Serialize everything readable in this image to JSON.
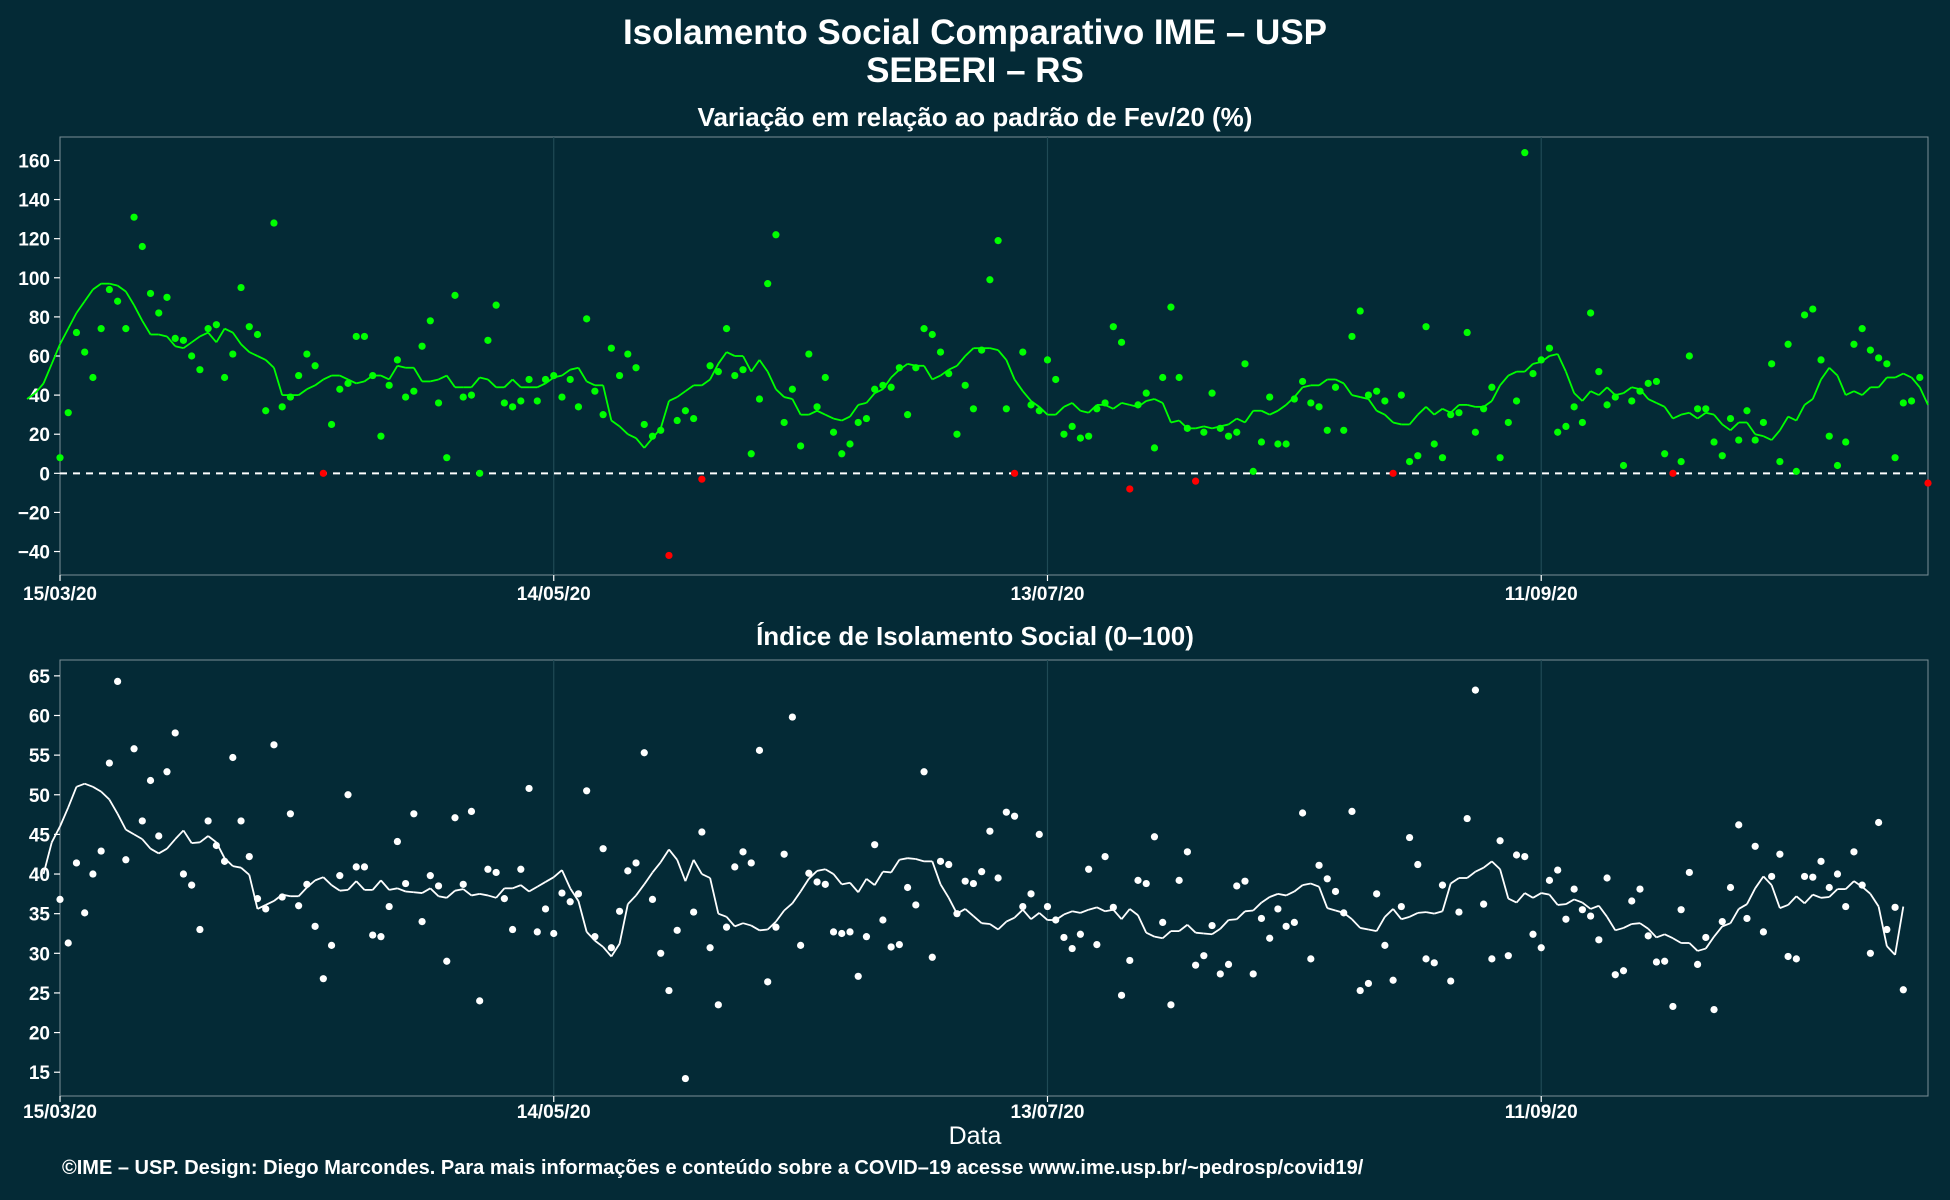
{
  "header": {
    "title": "Isolamento Social Comparativo IME – USP",
    "subtitle": "SEBERI – RS"
  },
  "footer": "©IME – USP. Design: Diego Marcondes. Para mais informações e conteúdo sobre a COVID–19 acesse www.ime.usp.br/~pedrosp/covid19/",
  "colors": {
    "background": "#042a36",
    "positive": "#00ff00",
    "negative": "#ff0000",
    "index": "#ffffff",
    "zero_line": "#ffffff",
    "grid": "#1f4a55"
  },
  "chart_data": [
    {
      "type": "scatter",
      "title": "Variação em relação ao padrão de Fev/20 (%)",
      "xlabel": "",
      "ylabel": "",
      "x_range": [
        "2020-03-15",
        "2020-10-28"
      ],
      "ylim": [
        -52,
        172
      ],
      "y_ticks": [
        -40,
        -20,
        0,
        20,
        40,
        60,
        80,
        100,
        120,
        140,
        160
      ],
      "x_ticks": [
        "15/03/20",
        "14/05/20",
        "13/07/20",
        "11/09/20"
      ],
      "reference_line": 0,
      "series": [
        {
          "points": [
            8,
            31,
            72,
            62,
            49,
            74,
            94,
            88,
            74,
            131,
            116,
            92,
            82,
            90,
            69,
            68,
            60,
            53,
            74,
            76,
            49,
            61,
            95,
            75,
            71,
            32,
            128,
            34,
            39,
            50,
            61,
            55,
            0,
            25,
            43,
            46,
            70,
            70,
            50,
            19,
            45,
            58,
            39,
            42,
            65,
            78,
            36,
            8,
            91,
            39,
            40,
            0,
            68,
            86,
            36,
            34,
            37,
            48,
            37,
            48,
            50,
            39,
            48,
            34,
            79,
            42,
            30,
            64,
            50,
            61,
            54,
            25,
            19,
            22,
            -42,
            27,
            32,
            28,
            -3,
            55,
            52,
            74,
            50,
            53,
            10,
            38,
            97,
            122,
            26,
            43,
            14,
            61,
            34,
            49,
            21,
            10,
            15,
            26,
            28,
            43,
            45,
            44,
            54,
            30,
            54,
            74,
            71,
            62,
            51,
            20,
            45,
            33,
            63,
            99,
            119,
            33,
            0,
            62,
            35,
            32,
            58,
            48,
            20,
            24,
            18,
            19,
            33,
            36,
            75,
            67,
            -8,
            35,
            41,
            13,
            49,
            85,
            49,
            23,
            -4,
            21,
            41,
            23,
            19,
            21,
            56,
            1,
            16,
            39,
            15,
            15,
            38,
            47,
            36,
            34,
            22,
            44,
            22,
            70,
            83,
            40,
            42,
            37,
            0,
            40,
            6,
            9,
            75,
            15,
            8,
            30,
            31,
            72,
            21,
            33,
            44,
            8,
            26,
            37,
            164,
            51,
            58,
            64,
            21,
            24,
            34,
            26,
            82,
            52,
            35,
            39,
            4,
            37,
            42,
            46,
            47,
            10,
            0,
            6,
            60,
            33,
            33,
            16,
            9,
            28,
            17,
            32,
            17,
            26,
            56,
            6,
            66,
            1,
            81,
            84,
            58,
            19,
            4,
            16,
            66,
            74,
            63,
            59,
            56,
            8,
            36,
            37,
            49,
            -5
          ]
        },
        {
          "name": "moving average",
          "values": [
            38,
            41,
            46,
            56,
            66,
            74,
            82,
            88,
            94,
            97,
            97,
            96,
            93,
            86,
            78,
            71,
            71,
            70,
            65,
            64,
            67,
            70,
            72,
            67,
            74,
            72,
            66,
            62,
            60,
            58,
            54,
            40,
            40,
            40,
            43,
            45,
            48,
            50,
            50,
            48,
            46,
            47,
            50,
            50,
            48,
            55,
            54,
            54,
            47,
            47,
            48,
            50,
            44,
            44,
            44,
            49,
            48,
            44,
            44,
            48,
            44,
            44,
            44,
            46,
            49,
            50,
            53,
            54,
            47,
            45,
            45,
            27,
            24,
            20,
            18,
            13,
            18,
            23,
            37,
            39,
            42,
            45,
            45,
            48,
            56,
            62,
            60,
            60,
            52,
            58,
            52,
            43,
            39,
            38,
            30,
            30,
            32,
            30,
            28,
            27,
            29,
            35,
            36,
            41,
            43,
            49,
            53,
            56,
            55,
            55,
            48,
            50,
            53,
            55,
            60,
            64,
            64,
            64,
            63,
            58,
            48,
            42,
            37,
            34,
            30,
            30,
            34,
            36,
            32,
            31,
            35,
            35,
            33,
            36,
            35,
            34,
            37,
            38,
            36,
            26,
            27,
            23,
            23,
            24,
            23,
            24,
            25,
            28,
            26,
            32,
            32,
            30,
            32,
            35,
            39,
            44,
            45,
            45,
            48,
            48,
            46,
            40,
            39,
            38,
            32,
            30,
            26,
            25,
            25,
            30,
            34,
            30,
            33,
            31,
            35,
            35,
            34,
            34,
            37,
            45,
            50,
            52,
            52,
            56,
            57,
            60,
            61,
            52,
            41,
            37,
            42,
            40,
            44,
            40,
            41,
            44,
            43,
            38,
            36,
            34,
            28,
            30,
            31,
            28,
            31,
            30,
            25,
            22,
            26,
            26,
            20,
            19,
            17,
            22,
            29,
            27,
            35,
            38,
            48,
            54,
            50,
            40,
            42,
            40,
            44,
            44,
            49,
            49,
            51,
            49,
            44,
            35
          ],
          "colors_by_sign": true
        }
      ]
    },
    {
      "type": "scatter",
      "title": "Índice de Isolamento Social (0–100)",
      "xlabel": "Data",
      "ylabel": "",
      "x_range": [
        "2020-03-15",
        "2020-10-28"
      ],
      "ylim": [
        12,
        67
      ],
      "y_ticks": [
        15,
        20,
        25,
        30,
        35,
        40,
        45,
        50,
        55,
        60,
        65
      ],
      "x_ticks": [
        "15/03/20",
        "14/05/20",
        "13/07/20",
        "11/09/20"
      ],
      "series": [
        {
          "points": [
            36.8,
            31.3,
            41.4,
            35.1,
            40.0,
            42.9,
            54.0,
            64.3,
            41.8,
            55.8,
            46.7,
            51.8,
            44.8,
            52.9,
            57.8,
            40.0,
            38.6,
            33.0,
            46.7,
            43.6,
            41.6,
            54.7,
            46.7,
            42.2,
            36.9,
            35.6,
            56.3,
            37.1,
            47.6,
            36.0,
            38.7,
            33.4,
            26.8,
            31.0,
            39.8,
            50.0,
            40.9,
            40.9,
            32.3,
            32.1,
            35.9,
            44.1,
            38.8,
            47.6,
            34.0,
            39.8,
            38.5,
            29.0,
            47.1,
            38.7,
            47.9,
            24.0,
            40.6,
            40.2,
            36.9,
            33.0,
            40.6,
            50.8,
            32.7,
            35.6,
            32.5,
            37.6,
            36.5,
            37.5,
            50.5,
            32.1,
            43.2,
            30.7,
            35.3,
            40.4,
            41.4,
            55.3,
            36.8,
            30.0,
            25.3,
            32.9,
            14.2,
            35.2,
            45.3,
            30.7,
            23.5,
            33.3,
            40.9,
            42.8,
            41.4,
            55.6,
            26.4,
            33.3,
            42.5,
            59.8,
            31.0,
            40.1,
            39.0,
            38.7,
            32.7,
            32.5,
            32.7,
            27.1,
            32.1,
            43.7,
            34.2,
            30.8,
            31.1,
            38.3,
            36.1,
            52.9,
            29.5,
            41.6,
            41.2,
            35.0,
            39.1,
            38.8,
            40.3,
            45.4,
            39.5,
            47.8,
            47.3,
            35.9,
            37.5,
            45.0,
            35.9,
            34.2,
            32.0,
            30.6,
            32.4,
            40.6,
            31.1,
            42.2,
            35.8,
            24.7,
            29.1,
            39.2,
            38.8,
            44.7,
            33.9,
            23.5,
            39.2,
            42.8,
            28.5,
            29.7,
            33.5,
            27.4,
            28.6,
            38.5,
            39.1,
            27.4,
            34.4,
            31.9,
            35.6,
            33.4,
            33.9,
            47.7,
            29.3,
            41.1,
            39.4,
            37.8,
            35.1,
            47.9,
            25.3,
            26.2,
            37.5,
            31.0,
            26.6,
            35.9,
            44.6,
            41.2,
            29.3,
            28.8,
            38.6,
            26.5,
            35.2,
            47.0,
            63.2,
            36.2,
            29.3,
            44.2,
            29.7,
            42.4,
            42.2,
            32.4,
            30.7,
            39.2,
            40.5,
            34.3,
            38.1,
            35.5,
            34.7,
            31.7,
            39.5,
            27.3,
            27.8,
            36.6,
            38.1,
            32.2,
            28.9,
            29.0,
            23.3,
            35.5,
            40.2,
            28.6,
            32.0,
            22.9,
            34.0,
            38.3,
            46.2,
            34.4,
            43.5,
            32.7,
            39.7,
            42.5,
            29.6,
            29.3,
            39.7,
            39.6,
            41.6,
            38.3,
            40.0,
            35.9,
            42.8,
            38.6,
            30.0,
            46.5,
            33.0,
            35.8,
            25.4
          ]
        },
        {
          "name": "moving average",
          "values": [
            40.0,
            44.0,
            46.0,
            48.4,
            51.0,
            51.4,
            51.0,
            50.4,
            49.4,
            47.6,
            45.6,
            45.0,
            44.4,
            43.2,
            42.6,
            43.2,
            44.4,
            45.5,
            43.9,
            44.0,
            44.8,
            44.0,
            42.0,
            41.0,
            40.8,
            39.9,
            35.6,
            36.1,
            36.6,
            37.4,
            37.2,
            37.2,
            38.3,
            39.2,
            39.6,
            38.6,
            37.9,
            38.0,
            39.1,
            38.0,
            38.0,
            39.2,
            38.0,
            38.2,
            37.8,
            37.7,
            37.6,
            38.2,
            37.2,
            37.0,
            37.9,
            38.1,
            37.3,
            37.5,
            37.3,
            37.0,
            38.2,
            38.2,
            38.6,
            37.8,
            38.4,
            39.0,
            39.6,
            40.5,
            38.2,
            36.6,
            32.7,
            31.6,
            30.8,
            29.6,
            31.2,
            36.2,
            37.3,
            38.7,
            40.2,
            41.5,
            43.1,
            41.8,
            39.1,
            41.8,
            40.0,
            39.5,
            35.0,
            34.6,
            33.4,
            33.8,
            33.5,
            32.9,
            33.0,
            34.0,
            35.4,
            36.3,
            37.8,
            39.4,
            40.4,
            40.6,
            40.0,
            38.7,
            38.9,
            37.7,
            39.4,
            38.6,
            40.3,
            40.2,
            41.8,
            42.0,
            41.9,
            41.6,
            41.6,
            38.7,
            37.0,
            35.0,
            35.6,
            34.7,
            33.8,
            33.7,
            33.0,
            34.0,
            34.5,
            35.5,
            34.3,
            35.1,
            34.2,
            34.2,
            34.9,
            35.3,
            35.1,
            35.5,
            35.8,
            35.3,
            35.5,
            34.3,
            35.6,
            34.8,
            32.6,
            32.1,
            31.9,
            32.8,
            32.8,
            33.6,
            32.6,
            32.5,
            32.4,
            33.1,
            34.2,
            34.3,
            35.3,
            35.4,
            36.4,
            37.1,
            37.5,
            37.3,
            37.8,
            38.6,
            38.8,
            38.4,
            35.7,
            35.4,
            35.1,
            34.3,
            33.2,
            33.0,
            32.8,
            34.6,
            35.6,
            34.3,
            34.6,
            35.1,
            35.2,
            35.0,
            35.3,
            38.8,
            39.5,
            39.5,
            40.3,
            40.8,
            41.6,
            40.6,
            36.9,
            36.4,
            37.6,
            37.0,
            37.6,
            37.4,
            36.1,
            36.2,
            36.8,
            36.4,
            35.6,
            36.0,
            34.6,
            32.9,
            33.2,
            33.7,
            33.8,
            33.1,
            32.0,
            32.4,
            31.9,
            31.3,
            31.3,
            30.3,
            30.6,
            32.1,
            33.4,
            33.8,
            35.6,
            36.2,
            38.2,
            39.7,
            38.6,
            35.7,
            36.1,
            37.2,
            36.3,
            37.4,
            37.0,
            37.1,
            38.1,
            38.1,
            39.1,
            38.4,
            37.5,
            35.9,
            30.9,
            29.8,
            35.9
          ]
        }
      ]
    }
  ]
}
